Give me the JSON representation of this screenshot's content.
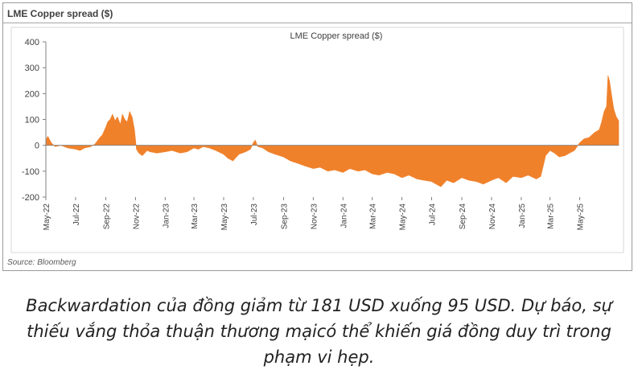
{
  "figure": {
    "header_title": "LME Copper spread ($)",
    "source": "Source: Bloomberg",
    "caption": "Backwardation của đồng giảm từ 181 USD xuống 95 USD. Dự báo, sự thiếu vắng thỏa thuận thương mạicó thể khiến giá đồng duy trì trong phạm vi hẹp."
  },
  "chart_data": {
    "type": "area",
    "title": "LME Copper spread ($)",
    "xlabel": "",
    "ylabel": "",
    "ylim": [
      -200,
      400
    ],
    "yticks": [
      400,
      300,
      200,
      100,
      0,
      -100,
      -200
    ],
    "xlim": [
      "2022-05-01",
      "2025-07-20"
    ],
    "xticks": [
      "May-22",
      "Jul-22",
      "Sep-22",
      "Nov-22",
      "Jan-23",
      "Mar-23",
      "May-23",
      "Jul-23",
      "Sep-23",
      "Nov-23",
      "Jan-24",
      "Mar-24",
      "May-24",
      "Jul-24",
      "Sep-24",
      "Nov-24",
      "Jan-25",
      "Mar-25",
      "May-25"
    ],
    "grid": false,
    "legend": "none",
    "color": "#f0812b",
    "series": [
      {
        "x": [
          "2022-05-01",
          "2022-05-05",
          "2022-05-12",
          "2022-05-20",
          "2022-06-01",
          "2022-06-15",
          "2022-07-01",
          "2022-07-10",
          "2022-07-20",
          "2022-08-01",
          "2022-08-10",
          "2022-08-20",
          "2022-08-25",
          "2022-09-01",
          "2022-09-05",
          "2022-09-10",
          "2022-09-15",
          "2022-09-20",
          "2022-09-25",
          "2022-10-01",
          "2022-10-05",
          "2022-10-10",
          "2022-10-15",
          "2022-10-20",
          "2022-10-25",
          "2022-10-30",
          "2022-11-03",
          "2022-11-08",
          "2022-11-15",
          "2022-11-25",
          "2022-12-01",
          "2022-12-15",
          "2023-01-01",
          "2023-01-15",
          "2023-02-01",
          "2023-02-15",
          "2023-03-01",
          "2023-03-10",
          "2023-03-20",
          "2023-04-01",
          "2023-04-15",
          "2023-05-01",
          "2023-05-10",
          "2023-05-20",
          "2023-06-01",
          "2023-06-15",
          "2023-06-25",
          "2023-07-01",
          "2023-07-05",
          "2023-07-10",
          "2023-07-20",
          "2023-08-01",
          "2023-08-15",
          "2023-09-01",
          "2023-09-15",
          "2023-10-01",
          "2023-10-15",
          "2023-11-01",
          "2023-11-15",
          "2023-12-01",
          "2023-12-15",
          "2024-01-01",
          "2024-01-15",
          "2024-02-01",
          "2024-02-15",
          "2024-03-01",
          "2024-03-15",
          "2024-04-01",
          "2024-04-15",
          "2024-05-01",
          "2024-05-15",
          "2024-06-01",
          "2024-06-15",
          "2024-07-01",
          "2024-07-10",
          "2024-07-20",
          "2024-08-01",
          "2024-08-15",
          "2024-09-01",
          "2024-09-15",
          "2024-10-01",
          "2024-10-15",
          "2024-11-01",
          "2024-11-15",
          "2024-12-01",
          "2024-12-15",
          "2025-01-01",
          "2025-01-15",
          "2025-02-01",
          "2025-02-10",
          "2025-02-15",
          "2025-02-20",
          "2025-03-01",
          "2025-03-10",
          "2025-03-20",
          "2025-04-01",
          "2025-04-10",
          "2025-04-20",
          "2025-05-01",
          "2025-05-10",
          "2025-05-20",
          "2025-06-01",
          "2025-06-10",
          "2025-06-15",
          "2025-06-20",
          "2025-06-25",
          "2025-06-28",
          "2025-07-01",
          "2025-07-05",
          "2025-07-10",
          "2025-07-15",
          "2025-07-20"
        ],
        "y": [
          20,
          35,
          10,
          -5,
          0,
          -10,
          -15,
          -20,
          -10,
          -5,
          5,
          30,
          40,
          70,
          90,
          100,
          120,
          95,
          110,
          80,
          120,
          100,
          90,
          130,
          110,
          60,
          -15,
          -30,
          -40,
          -20,
          -25,
          -30,
          -25,
          -20,
          -30,
          -25,
          -10,
          -15,
          -5,
          -10,
          -20,
          -35,
          -50,
          -60,
          -35,
          -25,
          -15,
          10,
          20,
          -5,
          -10,
          -25,
          -35,
          -45,
          -60,
          -70,
          -80,
          -90,
          -85,
          -100,
          -95,
          -105,
          -90,
          -100,
          -95,
          -110,
          -115,
          -105,
          -110,
          -125,
          -115,
          -130,
          -135,
          -140,
          -150,
          -160,
          -135,
          -145,
          -125,
          -135,
          -140,
          -150,
          -135,
          -125,
          -145,
          -120,
          -125,
          -115,
          -130,
          -120,
          -80,
          -40,
          -20,
          -30,
          -45,
          -40,
          -30,
          -20,
          10,
          25,
          30,
          50,
          60,
          90,
          130,
          150,
          270,
          250,
          200,
          140,
          110,
          95
        ]
      }
    ]
  }
}
